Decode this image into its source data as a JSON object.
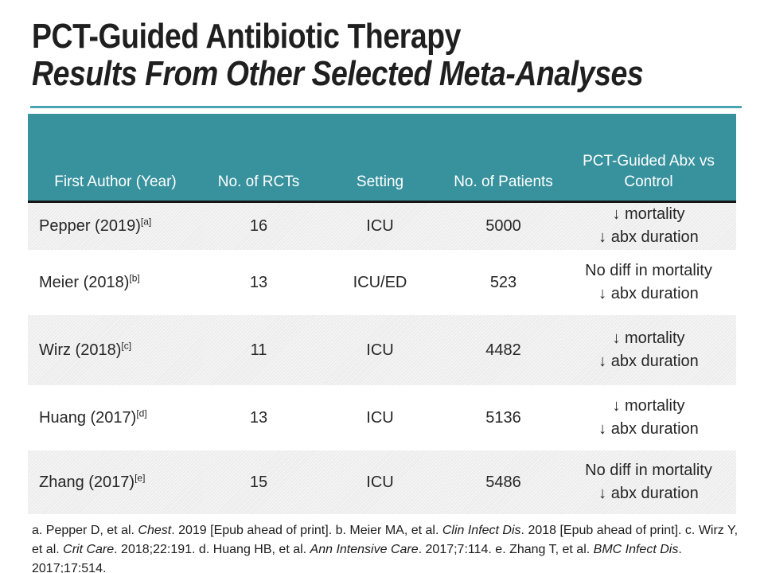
{
  "title": {
    "line1": "PCT-Guided Antibiotic Therapy",
    "line2": "Results From Other Selected Meta-Analyses"
  },
  "table": {
    "columns": [
      "First Author (Year)",
      "No. of RCTs",
      "Setting",
      "No. of Patients",
      "PCT-Guided Abx vs\nControl"
    ],
    "rows": [
      {
        "author": "Pepper (2019)",
        "ref": "[a]",
        "rcts": "16",
        "setting": "ICU",
        "patients": "5000",
        "outcome": [
          "↓ mortality",
          "↓ abx duration"
        ],
        "shaded": true
      },
      {
        "author": "Meier (2018)",
        "ref": "[b]",
        "rcts": "13",
        "setting": "ICU/ED",
        "patients": "523",
        "outcome": [
          "No diff in mortality",
          "↓ abx duration"
        ],
        "shaded": false
      },
      {
        "author": "Wirz (2018)",
        "ref": "[c]",
        "rcts": "11",
        "setting": "ICU",
        "patients": "4482",
        "outcome": [
          "↓ mortality",
          "↓ abx duration"
        ],
        "shaded": true
      },
      {
        "author": "Huang (2017)",
        "ref": "[d]",
        "rcts": "13",
        "setting": "ICU",
        "patients": "5136",
        "outcome": [
          "↓ mortality",
          "↓ abx duration"
        ],
        "shaded": false
      },
      {
        "author": "Zhang (2017)",
        "ref": "[e]",
        "rcts": "15",
        "setting": "ICU",
        "patients": "5486",
        "outcome": [
          "No diff in mortality",
          "↓ abx duration"
        ],
        "shaded": true
      }
    ]
  },
  "footnotes": [
    {
      "t": "a. Pepper D, et al. ",
      "i": false
    },
    {
      "t": "Chest",
      "i": true
    },
    {
      "t": ". 2019 [Epub ahead of print]. b. Meier MA, et al. ",
      "i": false
    },
    {
      "t": "Clin Infect Dis",
      "i": true
    },
    {
      "t": ". 2018 [Epub ahead of print]. c. Wirz Y, et al. ",
      "i": false
    },
    {
      "t": "Crit Care",
      "i": true
    },
    {
      "t": ". 2018;22:191. d. Huang HB, et al. ",
      "i": false
    },
    {
      "t": "Ann Intensive Care",
      "i": true
    },
    {
      "t": ". 2017;7:114. e. Zhang T, et al. ",
      "i": false
    },
    {
      "t": "BMC Infect Dis",
      "i": true
    },
    {
      "t": ". 2017;17:514.",
      "i": false
    }
  ],
  "colors": {
    "header_teal": "#38929e",
    "divider_teal": "#4aa5b1",
    "row_shade": "#ececec",
    "header_text": "#ffffff",
    "body_text": "#262626",
    "title_text": "#1f1f1f",
    "header_rule": "#161616"
  }
}
